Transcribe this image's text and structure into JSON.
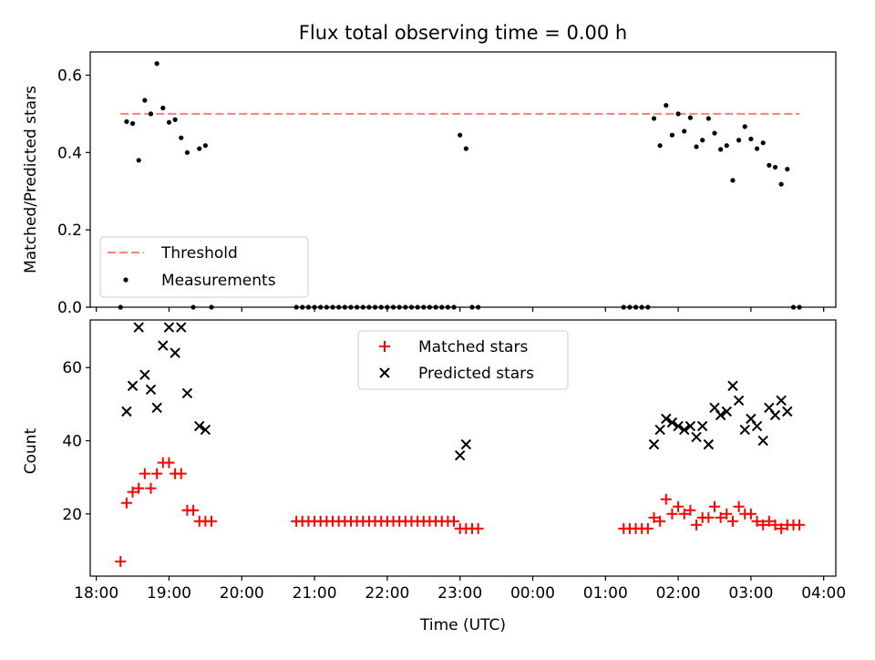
{
  "chart_data": [
    {
      "type": "scatter",
      "title": "Flux total observing time = 0.00 h",
      "xlabel": "",
      "ylabel": "Matched/Predicted stars",
      "xlim": [
        "17:55",
        "04:10"
      ],
      "ylim": [
        0,
        0.66
      ],
      "yticks": [
        "0.0",
        "0.2",
        "0.4",
        "0.6"
      ],
      "threshold": {
        "label": "Threshold",
        "value": 0.5,
        "x_range": [
          "18:20",
          "03:40"
        ],
        "color": "#ff7f7f"
      },
      "series": [
        {
          "name": "Measurements",
          "color": "#000000",
          "x": [
            "18:20",
            "18:25",
            "18:30",
            "18:35",
            "18:40",
            "18:45",
            "18:50",
            "18:55",
            "19:00",
            "19:05",
            "19:10",
            "19:15",
            "19:20",
            "19:25",
            "19:30",
            "19:35",
            "20:45",
            "20:50",
            "20:55",
            "21:00",
            "21:05",
            "21:10",
            "21:15",
            "21:20",
            "21:25",
            "21:30",
            "21:35",
            "21:40",
            "21:45",
            "21:50",
            "21:55",
            "22:00",
            "22:05",
            "22:10",
            "22:15",
            "22:20",
            "22:25",
            "22:30",
            "22:35",
            "22:40",
            "22:45",
            "22:50",
            "22:55",
            "23:00",
            "23:05",
            "23:10",
            "23:15",
            "01:15",
            "01:20",
            "01:25",
            "01:30",
            "01:35",
            "01:40",
            "01:45",
            "01:50",
            "01:55",
            "02:00",
            "02:05",
            "02:10",
            "02:15",
            "02:20",
            "02:25",
            "02:30",
            "02:35",
            "02:40",
            "02:45",
            "02:50",
            "02:55",
            "03:00",
            "03:05",
            "03:10",
            "03:15",
            "03:20",
            "03:25",
            "03:30",
            "03:35",
            "03:40"
          ],
          "y": [
            0.0,
            0.48,
            0.475,
            0.38,
            0.535,
            0.5,
            0.63,
            0.515,
            0.478,
            0.485,
            0.438,
            0.4,
            0.0,
            0.41,
            0.418,
            0.0,
            0.0,
            0.0,
            0.0,
            0.0,
            0.0,
            0.0,
            0.0,
            0.0,
            0.0,
            0.0,
            0.0,
            0.0,
            0.0,
            0.0,
            0.0,
            0.0,
            0.0,
            0.0,
            0.0,
            0.0,
            0.0,
            0.0,
            0.0,
            0.0,
            0.0,
            0.0,
            0.0,
            0.445,
            0.41,
            0.0,
            0.0,
            0.0,
            0.0,
            0.0,
            0.0,
            0.0,
            0.488,
            0.418,
            0.522,
            0.445,
            0.5,
            0.455,
            0.49,
            0.415,
            0.432,
            0.488,
            0.45,
            0.408,
            0.418,
            0.328,
            0.432,
            0.467,
            0.435,
            0.41,
            0.425,
            0.367,
            0.362,
            0.318,
            0.357,
            0.0,
            0.0
          ]
        }
      ],
      "legend": [
        "Threshold",
        "Measurements"
      ],
      "legend_position": "lower-left"
    },
    {
      "type": "scatter",
      "title": "",
      "xlabel": "Time (UTC)",
      "ylabel": "Count",
      "xlim": [
        "17:55",
        "04:10"
      ],
      "ylim": [
        3,
        73
      ],
      "xticks": [
        "18:00",
        "19:00",
        "20:00",
        "21:00",
        "22:00",
        "23:00",
        "00:00",
        "01:00",
        "02:00",
        "03:00",
        "04:00"
      ],
      "yticks": [
        "20",
        "40",
        "60"
      ],
      "series": [
        {
          "name": "Matched stars",
          "color": "#ff0000",
          "marker": "plus",
          "x": [
            "18:20",
            "18:25",
            "18:30",
            "18:35",
            "18:40",
            "18:45",
            "18:50",
            "18:55",
            "19:00",
            "19:05",
            "19:10",
            "19:15",
            "19:20",
            "19:25",
            "19:30",
            "19:35",
            "20:45",
            "20:50",
            "20:55",
            "21:00",
            "21:05",
            "21:10",
            "21:15",
            "21:20",
            "21:25",
            "21:30",
            "21:35",
            "21:40",
            "21:45",
            "21:50",
            "21:55",
            "22:00",
            "22:05",
            "22:10",
            "22:15",
            "22:20",
            "22:25",
            "22:30",
            "22:35",
            "22:40",
            "22:45",
            "22:50",
            "22:55",
            "23:00",
            "23:05",
            "23:10",
            "23:15",
            "01:15",
            "01:20",
            "01:25",
            "01:30",
            "01:35",
            "01:40",
            "01:45",
            "01:50",
            "01:55",
            "02:00",
            "02:05",
            "02:10",
            "02:15",
            "02:20",
            "02:25",
            "02:30",
            "02:35",
            "02:40",
            "02:45",
            "02:50",
            "02:55",
            "03:00",
            "03:05",
            "03:10",
            "03:15",
            "03:20",
            "03:25",
            "03:30",
            "03:35",
            "03:40"
          ],
          "y": [
            7,
            23,
            26,
            27,
            31,
            27,
            31,
            34,
            34,
            31,
            31,
            21,
            21,
            18,
            18,
            18,
            18,
            18,
            18,
            18,
            18,
            18,
            18,
            18,
            18,
            18,
            18,
            18,
            18,
            18,
            18,
            18,
            18,
            18,
            18,
            18,
            18,
            18,
            18,
            18,
            18,
            18,
            18,
            16,
            16,
            16,
            16,
            16,
            16,
            16,
            16,
            16,
            19,
            18,
            24,
            20,
            22,
            20,
            21,
            17,
            19,
            19,
            22,
            19,
            20,
            18,
            22,
            20,
            20,
            18,
            17,
            18,
            17,
            16,
            17,
            17,
            17
          ]
        },
        {
          "name": "Predicted stars",
          "color": "#000000",
          "marker": "x",
          "x": [
            "18:25",
            "18:30",
            "18:35",
            "18:40",
            "18:45",
            "18:50",
            "18:55",
            "19:00",
            "19:05",
            "19:10",
            "19:15",
            "19:25",
            "19:30",
            "23:00",
            "23:05",
            "01:40",
            "01:45",
            "01:50",
            "01:55",
            "02:00",
            "02:05",
            "02:10",
            "02:15",
            "02:20",
            "02:25",
            "02:30",
            "02:35",
            "02:40",
            "02:45",
            "02:50",
            "02:55",
            "03:00",
            "03:05",
            "03:10",
            "03:15",
            "03:20",
            "03:25",
            "03:30"
          ],
          "y": [
            48,
            55,
            71,
            58,
            54,
            49,
            66,
            71,
            64,
            71,
            53,
            44,
            43,
            36,
            39,
            39,
            43,
            46,
            45,
            44,
            43,
            44,
            41,
            44,
            39,
            49,
            47,
            48,
            55,
            51,
            43,
            46,
            44,
            40,
            49,
            47,
            51,
            48
          ]
        }
      ],
      "legend": [
        "Matched stars",
        "Predicted stars"
      ],
      "legend_position": "upper-center"
    }
  ]
}
